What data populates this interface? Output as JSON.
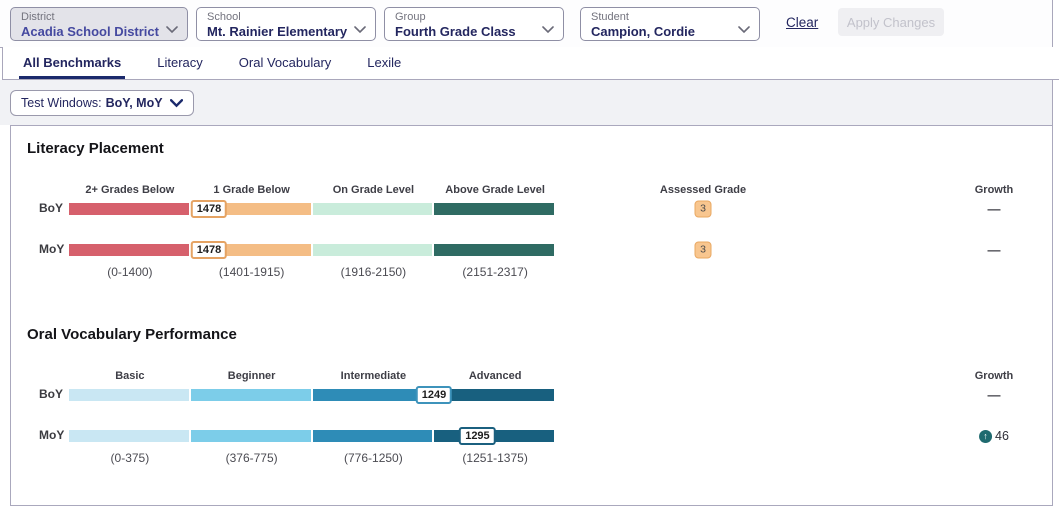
{
  "filters": {
    "items": [
      {
        "label": "District",
        "value": "Acadia School District",
        "disabled": true
      },
      {
        "label": "School",
        "value": "Mt. Rainier Elementary",
        "disabled": false
      },
      {
        "label": "Group",
        "value": "Fourth Grade Class",
        "disabled": false
      },
      {
        "label": "Student",
        "value": "Campion, Cordie",
        "disabled": false
      }
    ],
    "clear_label": "Clear",
    "apply_label": "Apply Changes"
  },
  "tabs": [
    {
      "label": "All Benchmarks",
      "active": true
    },
    {
      "label": "Literacy",
      "active": false
    },
    {
      "label": "Oral Vocabulary",
      "active": false
    },
    {
      "label": "Lexile",
      "active": false
    }
  ],
  "test_windows": {
    "label": "Test Windows:",
    "value": "BoY, MoY"
  },
  "colors": {
    "navy": "#23265f",
    "tab_underline": "#1b2a6c",
    "badge_bg": "#f8c68f",
    "badge_border": "#e9a862",
    "growth_up": "#1f6a6f",
    "divider": "#aaa8bd"
  },
  "chart_data": [
    {
      "type": "bar",
      "title": "Literacy Placement",
      "categories": [
        {
          "label": "2+ Grades Below",
          "min": 0,
          "max": 1400,
          "range_label": "(0-1400)",
          "color": "#d6606c"
        },
        {
          "label": "1 Grade Below",
          "min": 1401,
          "max": 1915,
          "range_label": "(1401-1915)",
          "color": "#f4bd85"
        },
        {
          "label": "On Grade Level",
          "min": 1916,
          "max": 2150,
          "range_label": "(1916-2150)",
          "color": "#c9ecdb"
        },
        {
          "label": "Above Grade Level",
          "min": 2151,
          "max": 2317,
          "range_label": "(2151-2317)",
          "color": "#2f6b63"
        }
      ],
      "columns": {
        "assessed_grade": "Assessed Grade",
        "growth": "Growth"
      },
      "rows": [
        {
          "label": "BoY",
          "score": 1478,
          "marker_border": "#e5a363",
          "assessed_grade": "3",
          "growth": {
            "type": "dash",
            "text": "—"
          }
        },
        {
          "label": "MoY",
          "score": 1478,
          "marker_border": "#e5a363",
          "assessed_grade": "3",
          "growth": {
            "type": "dash",
            "text": "—"
          }
        }
      ]
    },
    {
      "type": "bar",
      "title": "Oral Vocabulary Performance",
      "categories": [
        {
          "label": "Basic",
          "min": 0,
          "max": 375,
          "range_label": "(0-375)",
          "color": "#c9e7f3"
        },
        {
          "label": "Beginner",
          "min": 376,
          "max": 775,
          "range_label": "(376-775)",
          "color": "#7ccde9"
        },
        {
          "label": "Intermediate",
          "min": 776,
          "max": 1250,
          "range_label": "(776-1250)",
          "color": "#2e8cb7"
        },
        {
          "label": "Advanced",
          "min": 1251,
          "max": 1375,
          "range_label": "(1251-1375)",
          "color": "#18607f"
        }
      ],
      "columns": {
        "growth": "Growth"
      },
      "rows": [
        {
          "label": "BoY",
          "score": 1249,
          "marker_border": "#3d93bb",
          "growth": {
            "type": "dash",
            "text": "—"
          }
        },
        {
          "label": "MoY",
          "score": 1295,
          "marker_border": "#1b607f",
          "growth": {
            "type": "up",
            "text": "46"
          }
        }
      ]
    }
  ]
}
